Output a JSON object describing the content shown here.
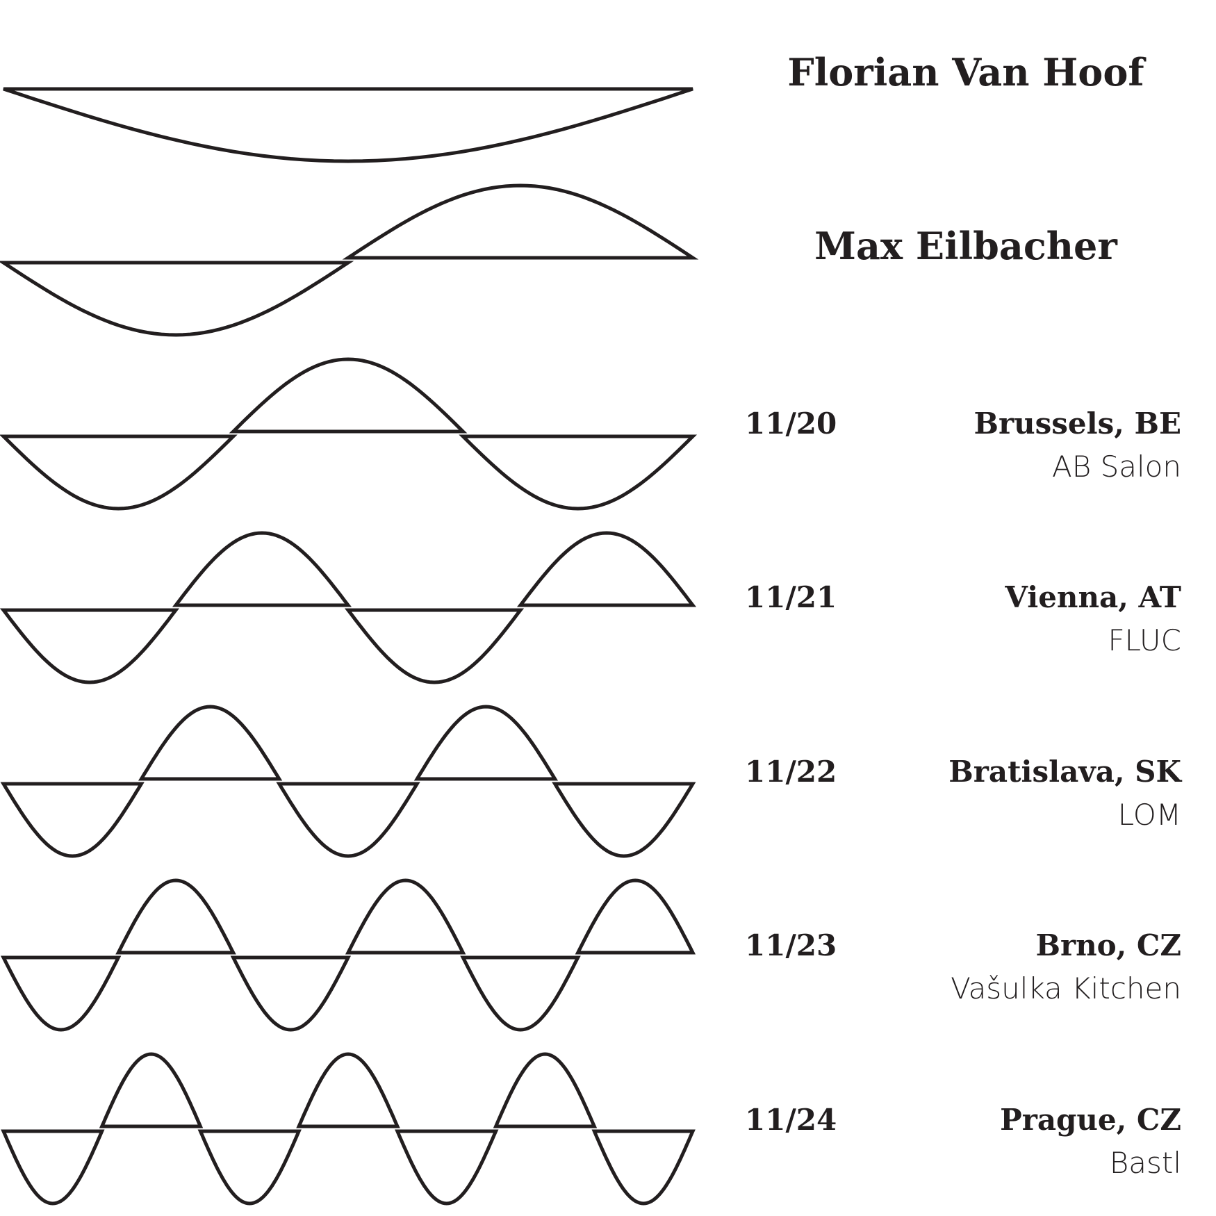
{
  "artists": [
    "Florian Van Hoof",
    "Max Eilbacher"
  ],
  "tour": [
    {
      "date": "11/20",
      "city": "Brussels, BE",
      "venue": "AB Salon"
    },
    {
      "date": "11/21",
      "city": "Vienna, AT",
      "venue": "FLUC"
    },
    {
      "date": "11/22",
      "city": "Bratislava, SK",
      "venue": "LOM"
    },
    {
      "date": "11/23",
      "city": "Brno, CZ",
      "venue": "Vašulka Kitchen"
    },
    {
      "date": "11/24",
      "city": "Prague, CZ",
      "venue": "Bastl"
    }
  ],
  "waves": {
    "half_cycles": [
      1,
      2,
      3,
      4,
      5,
      6,
      7
    ],
    "stroke_color": "#221e1f"
  }
}
